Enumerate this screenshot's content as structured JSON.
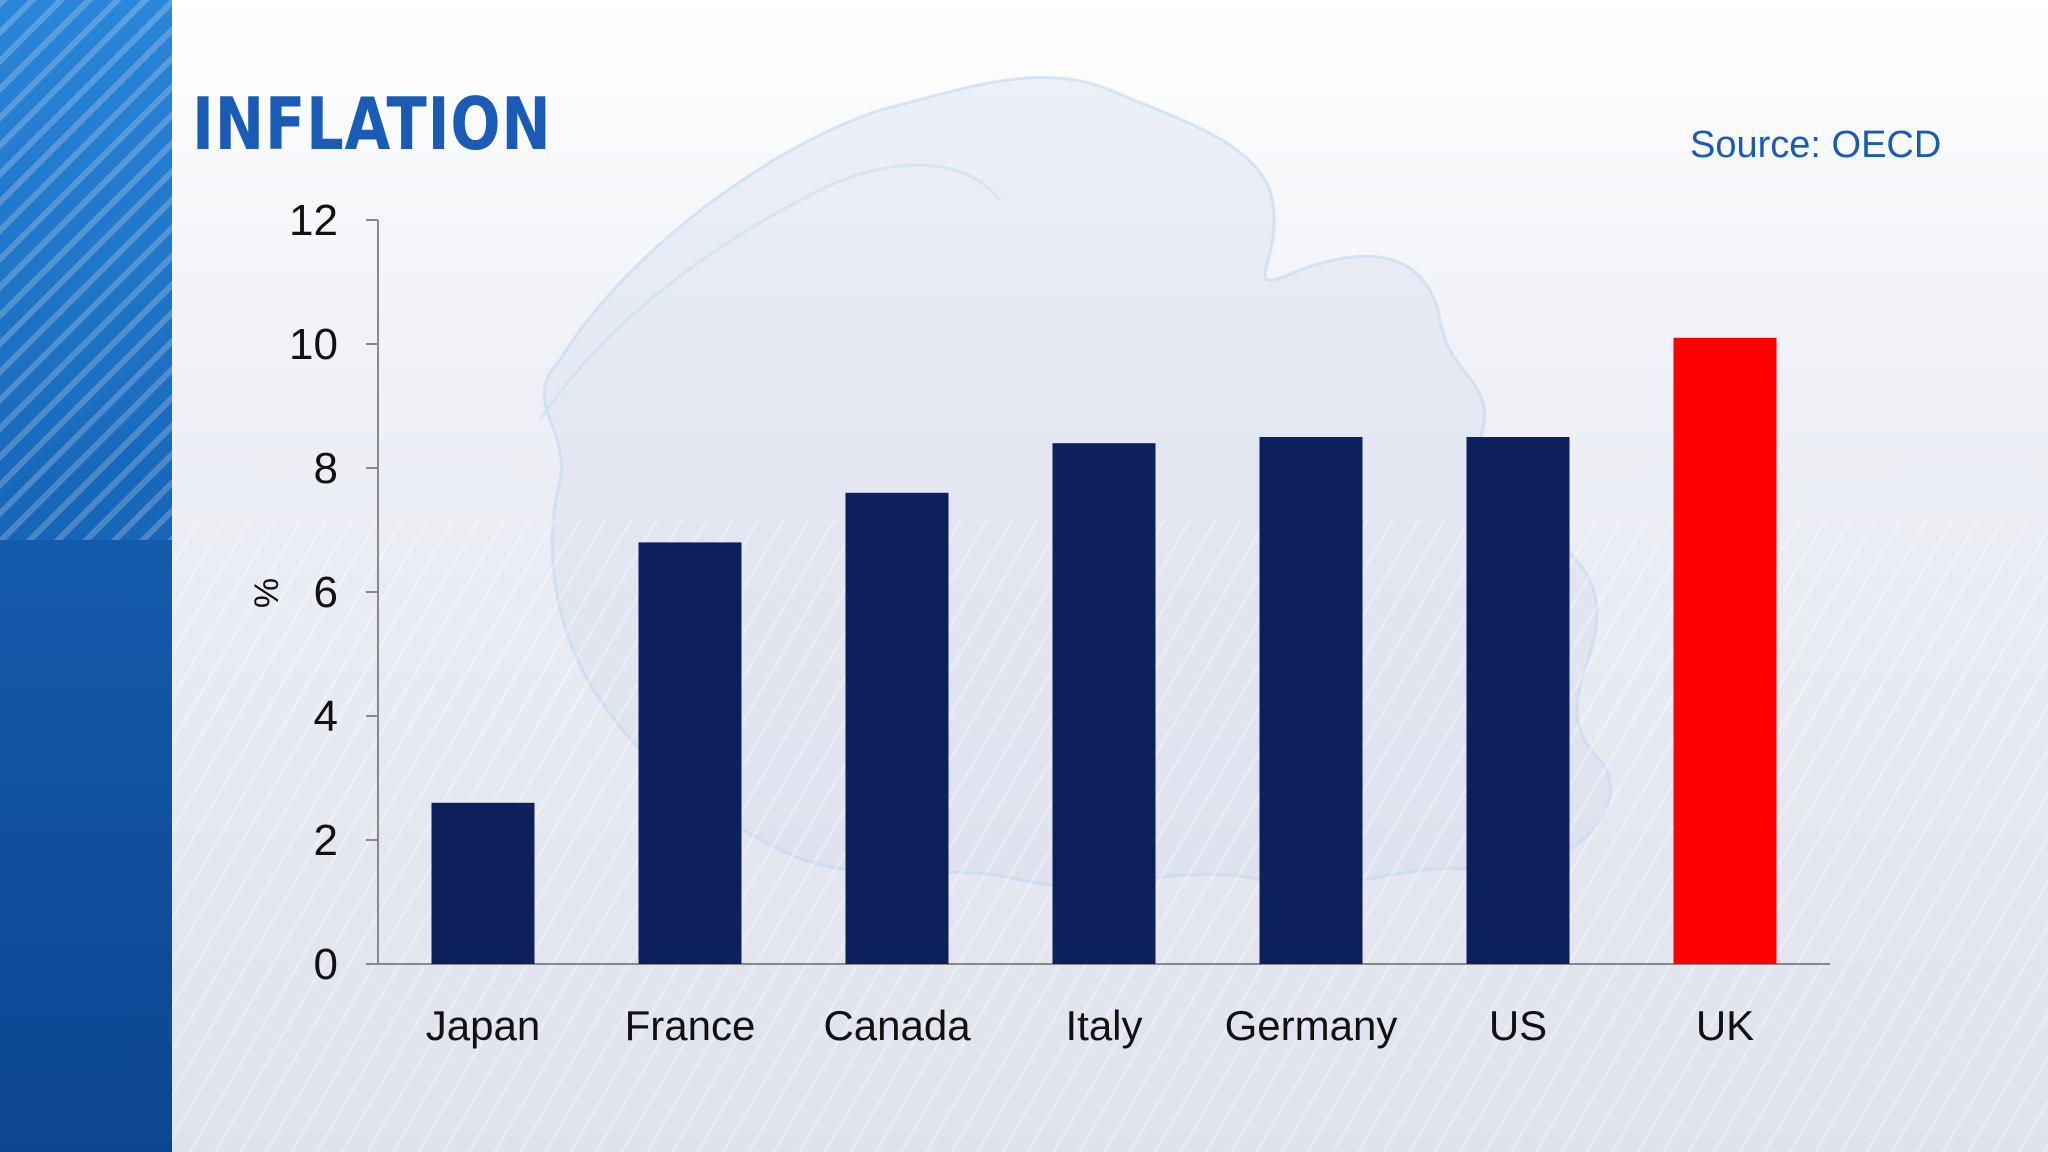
{
  "header": {
    "title": "INFLATION",
    "source": "Source: OECD"
  },
  "colors": {
    "bar_default": "#0d1f5c",
    "bar_highlight": "#ff0000",
    "accent": "#1a5cb5",
    "side_band": "#1766b8"
  },
  "chart_data": {
    "type": "bar",
    "title": "INFLATION",
    "xlabel": "",
    "ylabel": "%",
    "ylim": [
      0,
      12
    ],
    "yticks": [
      0,
      2,
      4,
      6,
      8,
      10,
      12
    ],
    "categories": [
      "Japan",
      "France",
      "Canada",
      "Italy",
      "Germany",
      "US",
      "UK"
    ],
    "values": [
      2.6,
      6.8,
      7.6,
      8.4,
      8.5,
      8.5,
      10.1
    ],
    "highlight_category": "UK",
    "grid": false,
    "legend": "none"
  }
}
